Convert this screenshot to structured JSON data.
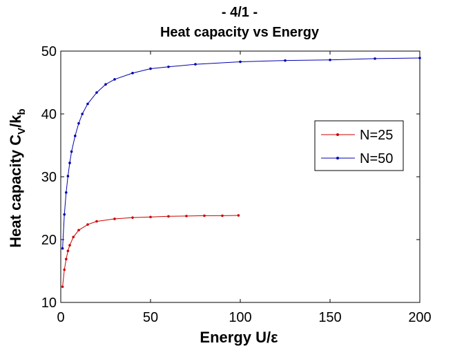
{
  "chart_data": {
    "type": "line",
    "title": "- 4/1 -",
    "subtitle": "Heat capacity vs Energy",
    "xlabel_main": "Energy U/",
    "xlabel_symbol": "ε",
    "ylabel_main": "Heat capacity C",
    "ylabel_sub1": "V",
    "ylabel_mid": "/k",
    "ylabel_sub2": "b",
    "xlim": [
      0,
      200
    ],
    "ylim": [
      10,
      50
    ],
    "xticks": [
      "0",
      "50",
      "100",
      "150",
      "200"
    ],
    "yticks": [
      "10",
      "20",
      "30",
      "40",
      "50"
    ],
    "grid": false,
    "legend": {
      "placement": "right"
    },
    "series": [
      {
        "name": "N=25",
        "color": "#cc0000",
        "points": [
          [
            1,
            12.5
          ],
          [
            2,
            15.2
          ],
          [
            3,
            16.9
          ],
          [
            4,
            18.2
          ],
          [
            5,
            19.1
          ],
          [
            7,
            20.4
          ],
          [
            10,
            21.5
          ],
          [
            15,
            22.4
          ],
          [
            20,
            22.9
          ],
          [
            30,
            23.3
          ],
          [
            40,
            23.5
          ],
          [
            50,
            23.6
          ],
          [
            60,
            23.7
          ],
          [
            70,
            23.75
          ],
          [
            80,
            23.8
          ],
          [
            90,
            23.8
          ],
          [
            99,
            23.85
          ]
        ]
      },
      {
        "name": "N=50",
        "color": "#0000b0",
        "points": [
          [
            1,
            18.6
          ],
          [
            2,
            24.0
          ],
          [
            3,
            27.5
          ],
          [
            4,
            30.1
          ],
          [
            5,
            32.2
          ],
          [
            6,
            34.0
          ],
          [
            8,
            36.5
          ],
          [
            10,
            38.5
          ],
          [
            12,
            40.0
          ],
          [
            15,
            41.6
          ],
          [
            20,
            43.4
          ],
          [
            25,
            44.7
          ],
          [
            30,
            45.5
          ],
          [
            40,
            46.5
          ],
          [
            50,
            47.2
          ],
          [
            60,
            47.5
          ],
          [
            75,
            47.9
          ],
          [
            100,
            48.3
          ],
          [
            125,
            48.5
          ],
          [
            150,
            48.6
          ],
          [
            175,
            48.8
          ],
          [
            200,
            48.9
          ]
        ]
      }
    ]
  }
}
